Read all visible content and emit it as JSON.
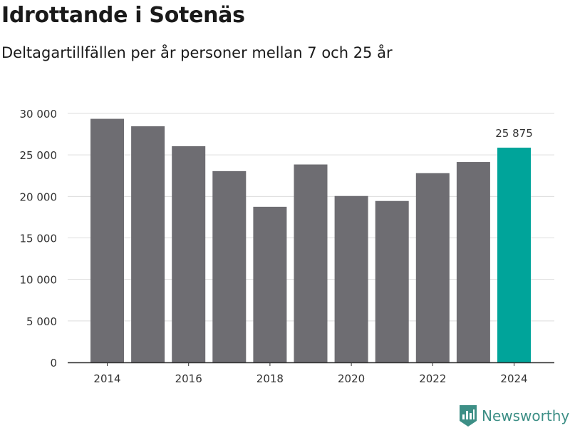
{
  "header": {
    "title": "Idrottande i Sotenäs",
    "subtitle": "Deltagartillfällen per år personer mellan 7 och 25 år"
  },
  "brand": {
    "name": "Newsworthy",
    "icon": "newsworthy-logo-icon",
    "color": "#3d8f86"
  },
  "colors": {
    "bar": "#6e6d72",
    "highlight": "#00a49a",
    "grid": "#dddddd",
    "axis": "#333333",
    "text": "#333333"
  },
  "chart_data": {
    "type": "bar",
    "title": "Idrottande i Sotenäs",
    "subtitle": "Deltagartillfällen per år personer mellan 7 och 25 år",
    "xlabel": "",
    "ylabel": "",
    "categories": [
      "2014",
      "2015",
      "2016",
      "2017",
      "2018",
      "2019",
      "2020",
      "2021",
      "2022",
      "2023",
      "2024"
    ],
    "values": [
      29350,
      28450,
      26050,
      23050,
      18750,
      23850,
      20050,
      19450,
      22800,
      24150,
      25875
    ],
    "ylim": [
      0,
      30000
    ],
    "yticks": [
      0,
      5000,
      10000,
      15000,
      20000,
      25000,
      30000
    ],
    "ytick_labels": [
      "0",
      "5 000",
      "10 000",
      "15 000",
      "20 000",
      "25 000",
      "30 000"
    ],
    "xtick_labels": [
      "2014",
      "",
      "2016",
      "",
      "2018",
      "",
      "2020",
      "",
      "2022",
      "",
      "2024"
    ],
    "highlight_index": 10,
    "annotations": [
      {
        "index": 10,
        "text": "25 875"
      }
    ],
    "grid": true,
    "legend": "none"
  }
}
